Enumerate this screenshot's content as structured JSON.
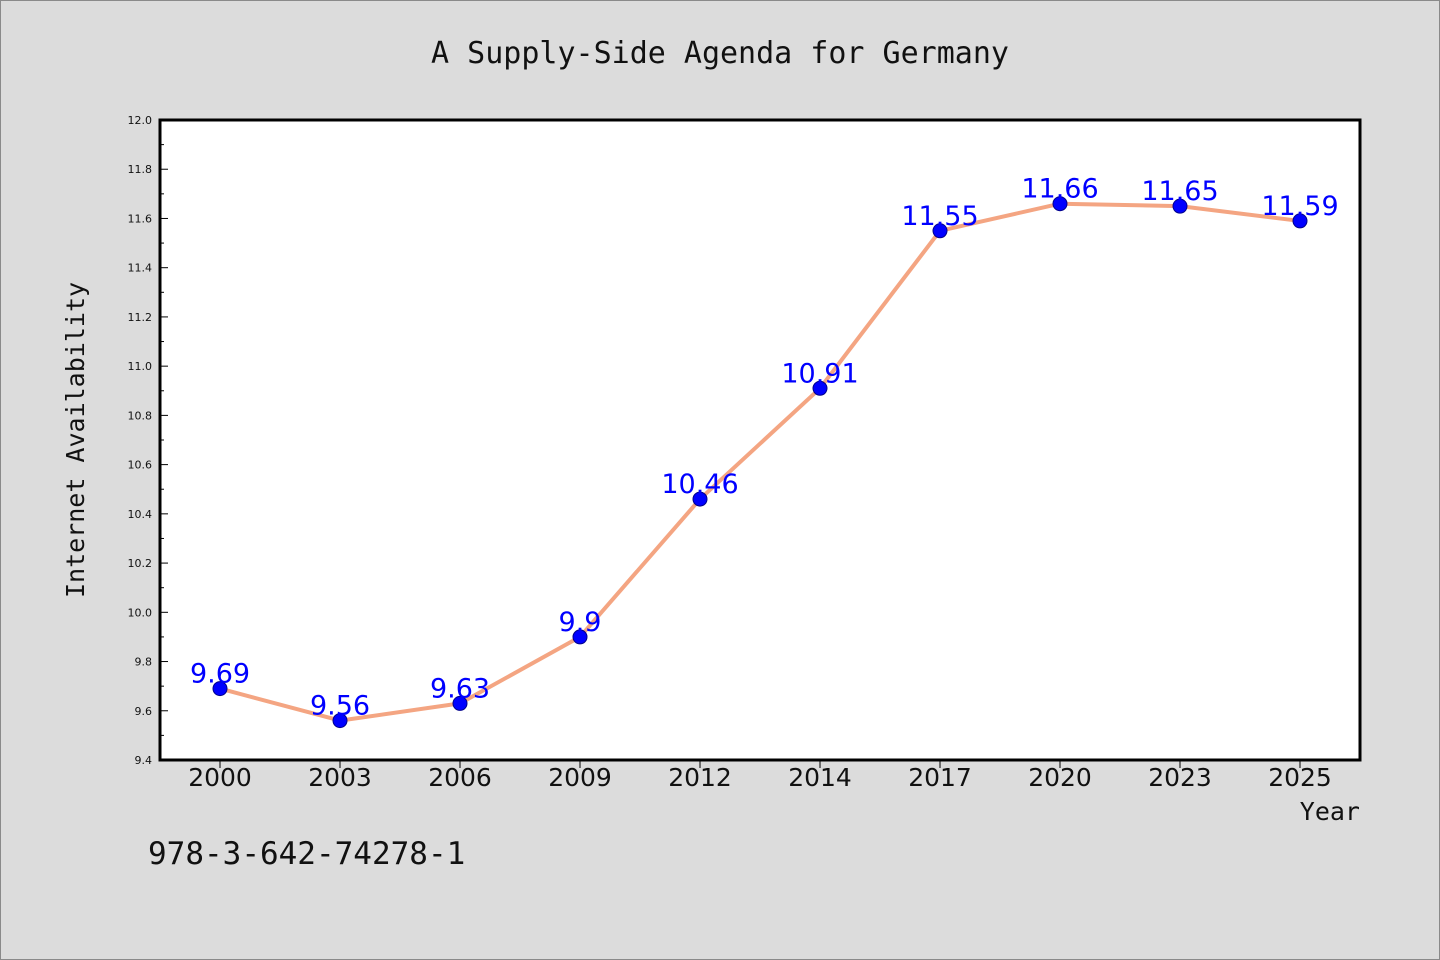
{
  "isbn": "978-3-642-74278-1",
  "colors": {
    "background": "#dcdcdc",
    "plot_background": "#ffffff",
    "line": "#f4a582",
    "marker": "#0000ff",
    "data_label": "#0000ff"
  },
  "chart_data": {
    "type": "line",
    "title": "A Supply-Side Agenda for Germany",
    "xlabel": "Year",
    "ylabel": "Internet Availability",
    "categories": [
      "2000",
      "2003",
      "2006",
      "2009",
      "2012",
      "2014",
      "2017",
      "2020",
      "2023",
      "2025"
    ],
    "series": [
      {
        "values": [
          9.69,
          9.56,
          9.63,
          9.9,
          10.46,
          10.91,
          11.55,
          11.66,
          11.65,
          11.59
        ],
        "labels": [
          "9.69",
          "9.56",
          "9.63",
          "9.9",
          "10.46",
          "10.91",
          "11.55",
          "11.66",
          "11.65",
          "11.59"
        ]
      }
    ],
    "ylim": [
      9.4,
      12.0
    ],
    "yticks": [
      "9.4",
      "9.6",
      "9.8",
      "10.0",
      "10.2",
      "10.4",
      "10.6",
      "10.8",
      "11.0",
      "11.2",
      "11.4",
      "11.6",
      "11.8",
      "12.0"
    ],
    "grid": false,
    "legend": "none",
    "marker": "circle",
    "data_labels": true
  }
}
